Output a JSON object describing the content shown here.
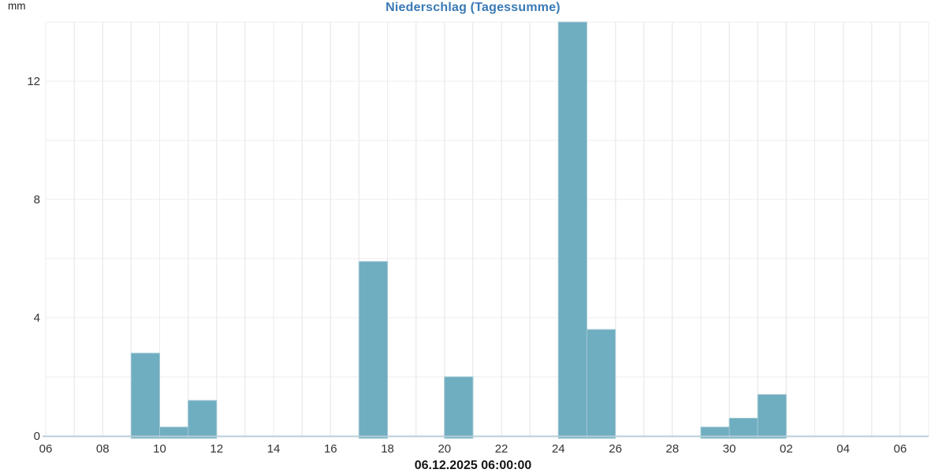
{
  "colors": {
    "title_text": "#3a7ab5",
    "bar_fill": "#6fadc0",
    "bar_stroke": "#9fc7d4",
    "grid": "#ececec",
    "axis_line": "#b7ced9",
    "tick_text": "#333333",
    "footer_text": "#151515"
  },
  "footer": {
    "timestamp": "06.12.2025 06:00:00"
  },
  "chart_data": {
    "type": "bar",
    "title": "Niederschlag (Tagessumme)",
    "ylabel": "mm",
    "xlabel": "",
    "ylim": [
      0,
      14
    ],
    "y_grid_step": 2,
    "y_labeled_ticks": [
      0,
      4,
      8,
      12
    ],
    "grid": true,
    "legend": "none",
    "x_total_days": 31,
    "x_tick_every_days": 2,
    "x_tick_labels": [
      "06",
      "08",
      "10",
      "12",
      "14",
      "16",
      "18",
      "20",
      "22",
      "24",
      "26",
      "28",
      "30",
      "02",
      "04",
      "06"
    ],
    "x_axis_note": "days of month, 06 Nov through 06 Dec, ending 06.12.2025 06:00:00",
    "bars": [
      {
        "day_label": "09",
        "day_offset": 3,
        "value": 2.8
      },
      {
        "day_label": "10",
        "day_offset": 4,
        "value": 0.3
      },
      {
        "day_label": "11",
        "day_offset": 5,
        "value": 1.2
      },
      {
        "day_label": "17",
        "day_offset": 11,
        "value": 5.9
      },
      {
        "day_label": "20",
        "day_offset": 14,
        "value": 2.0
      },
      {
        "day_label": "24",
        "day_offset": 18,
        "value": 14.0
      },
      {
        "day_label": "25",
        "day_offset": 19,
        "value": 3.6
      },
      {
        "day_label": "29",
        "day_offset": 23,
        "value": 0.3
      },
      {
        "day_label": "30",
        "day_offset": 24,
        "value": 0.6
      },
      {
        "day_label": "01",
        "day_offset": 25,
        "value": 1.4
      }
    ]
  }
}
